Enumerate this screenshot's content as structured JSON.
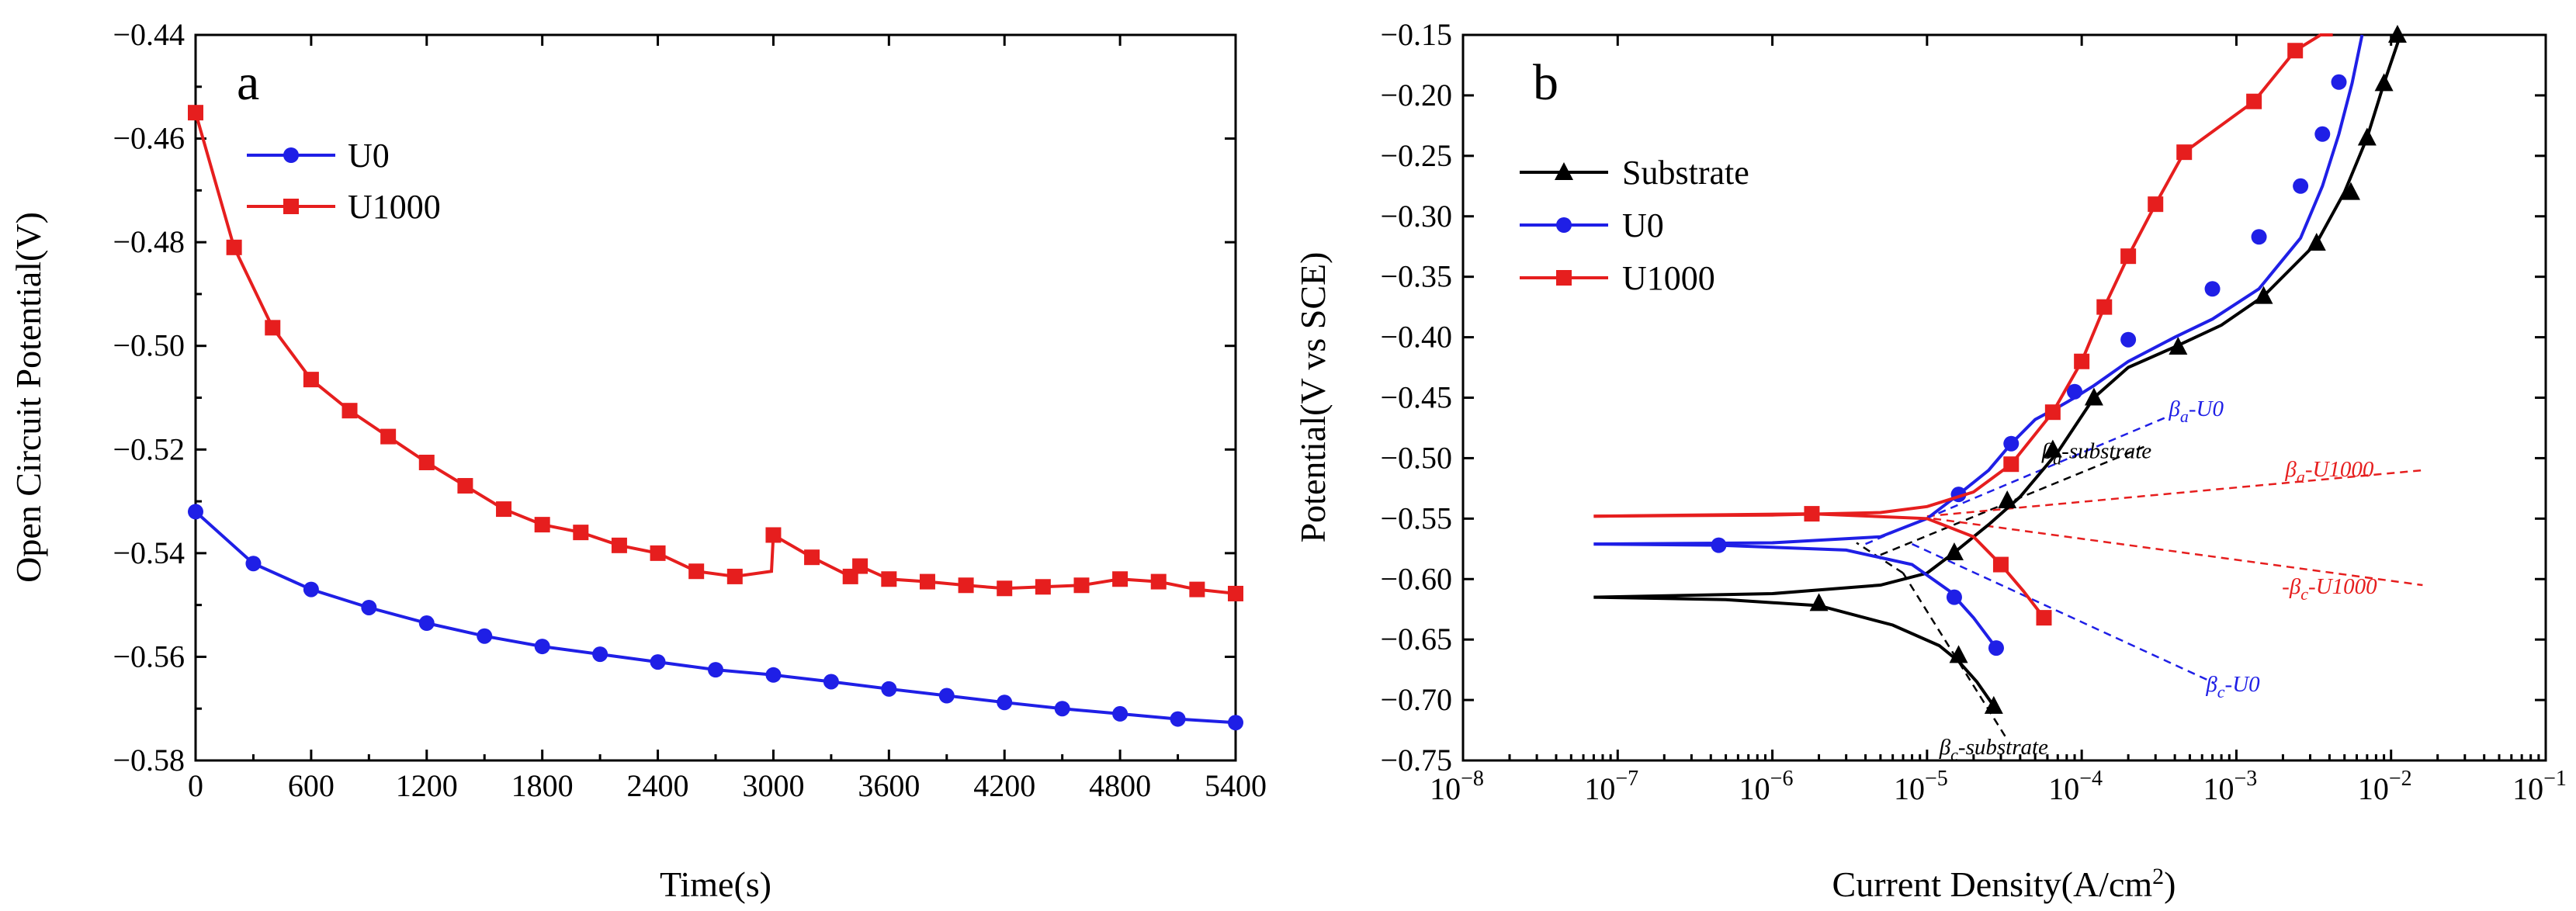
{
  "chart_data": [
    {
      "id": "a",
      "type": "line",
      "panel_label": "a",
      "xlabel": "Time(s)",
      "ylabel": "Open Circuit Potential(V)",
      "xlim": [
        0,
        5400
      ],
      "ylim": [
        -0.58,
        -0.44
      ],
      "xticks": [
        "0",
        "600",
        "1200",
        "1800",
        "2400",
        "3000",
        "3600",
        "4200",
        "4800",
        "5400"
      ],
      "yticks": [
        "-0.44",
        "-0.46",
        "-0.48",
        "-0.50",
        "-0.52",
        "-0.54",
        "-0.56",
        "-0.58"
      ],
      "legend_position": "top-left",
      "series": [
        {
          "name": "U0",
          "color": "#1f1fe6",
          "marker": "circle",
          "x": [
            0,
            300,
            600,
            900,
            1200,
            1500,
            1800,
            2100,
            2400,
            2700,
            3000,
            3300,
            3600,
            3900,
            4200,
            4500,
            4800,
            5100,
            5400
          ],
          "y": [
            -0.532,
            -0.542,
            -0.547,
            -0.5505,
            -0.5535,
            -0.556,
            -0.558,
            -0.5595,
            -0.561,
            -0.5625,
            -0.5635,
            -0.5648,
            -0.5662,
            -0.5675,
            -0.5688,
            -0.57,
            -0.571,
            -0.572,
            -0.5727
          ]
        },
        {
          "name": "U1000",
          "color": "#e61e1e",
          "marker": "square",
          "x": [
            0,
            200,
            400,
            600,
            800,
            1000,
            1200,
            1400,
            1600,
            1800,
            2000,
            2200,
            2400,
            2600,
            2800,
            2990,
            3000,
            3200,
            3400,
            3450,
            3600,
            3800,
            4000,
            4200,
            4400,
            4600,
            4800,
            5000,
            5200,
            5400
          ],
          "y": [
            -0.455,
            -0.481,
            -0.4965,
            -0.5065,
            -0.5125,
            -0.5175,
            -0.5225,
            -0.527,
            -0.5315,
            -0.5345,
            -0.536,
            -0.5385,
            -0.54,
            -0.5435,
            -0.5445,
            -0.5435,
            -0.5365,
            -0.5408,
            -0.5445,
            -0.5425,
            -0.545,
            -0.5455,
            -0.5462,
            -0.5468,
            -0.5465,
            -0.5462,
            -0.545,
            -0.5455,
            -0.547,
            -0.5478
          ]
        }
      ]
    },
    {
      "id": "b",
      "type": "line",
      "panel_label": "b",
      "xlabel": "Current Density(A/cm",
      "xlabel_sup": "2",
      "xlabel_end": ")",
      "ylabel": "Potential(V vs SCE)",
      "xscale": "log",
      "xlim_exp": [
        -8,
        -1
      ],
      "ylim": [
        -0.75,
        -0.15
      ],
      "xtick_base": "10",
      "xtick_exps": [
        "-8",
        "-7",
        "-6",
        "-5",
        "-4",
        "-3",
        "-2",
        "-1"
      ],
      "yticks": [
        "-0.15",
        "-0.20",
        "-0.25",
        "-0.30",
        "-0.35",
        "-0.40",
        "-0.45",
        "-0.50",
        "-0.55",
        "-0.60",
        "-0.65",
        "-0.70",
        "-0.75"
      ],
      "legend_position": "top-left",
      "series": [
        {
          "name": "Substrate",
          "color": "#000000",
          "marker": "triangle",
          "cathodic": {
            "x": [
              7e-08,
              5e-07,
              2e-06,
              6e-06,
              1.2e-05,
              1.6e-05,
              2.1e-05,
              2.7e-05
            ],
            "y": [
              -0.615,
              -0.617,
              -0.622,
              -0.638,
              -0.655,
              -0.668,
              -0.685,
              -0.705
            ]
          },
          "anodic": {
            "x": [
              7e-08,
              1e-06,
              5e-06,
              1e-05,
              1.5e-05,
              2.5e-05,
              4e-05,
              7e-05,
              0.00012,
              0.0002,
              0.0004,
              0.0008,
              0.0015,
              0.0033,
              0.005,
              0.007,
              0.009,
              0.0115
            ],
            "y": [
              -0.615,
              -0.612,
              -0.605,
              -0.595,
              -0.578,
              -0.555,
              -0.532,
              -0.495,
              -0.45,
              -0.425,
              -0.408,
              -0.39,
              -0.366,
              -0.322,
              -0.28,
              -0.235,
              -0.19,
              -0.15
            ]
          },
          "marker_points": {
            "x": [
              2e-06,
              1.6e-05,
              2.7e-05,
              1.5e-05,
              3.3e-05,
              6.5e-05,
              0.00012,
              0.00042,
              0.0015,
              0.0033,
              0.0055,
              0.007,
              0.009,
              0.011
            ],
            "y": [
              -0.62,
              -0.663,
              -0.705,
              -0.578,
              -0.535,
              -0.493,
              -0.45,
              -0.408,
              -0.366,
              -0.322,
              -0.28,
              -0.235,
              -0.19,
              -0.15
            ]
          }
        },
        {
          "name": "U0",
          "color": "#1f1fe6",
          "marker": "circle",
          "cathodic": {
            "x": [
              7e-08,
              4.5e-07,
              3e-06,
              8e-06,
              1.4e-05,
              2e-05,
              2.8e-05
            ],
            "y": [
              -0.571,
              -0.572,
              -0.576,
              -0.588,
              -0.61,
              -0.632,
              -0.657
            ]
          },
          "anodic": {
            "x": [
              7e-08,
              1e-06,
              5e-06,
              1e-05,
              1.6e-05,
              2.5e-05,
              3.5e-05,
              5e-05,
              7e-05,
              9e-05,
              0.00012,
              0.0002,
              0.0004,
              0.0007,
              0.0014,
              0.0026,
              0.0036,
              0.0046,
              0.0056,
              0.0065
            ],
            "y": [
              -0.571,
              -0.57,
              -0.565,
              -0.55,
              -0.53,
              -0.51,
              -0.488,
              -0.468,
              -0.458,
              -0.45,
              -0.44,
              -0.42,
              -0.4,
              -0.385,
              -0.36,
              -0.318,
              -0.275,
              -0.232,
              -0.19,
              -0.15
            ]
          },
          "marker_points": {
            "x": [
              4.5e-07,
              1.5e-05,
              2.8e-05,
              1.6e-05,
              3.5e-05,
              9e-05,
              0.0002,
              0.0007,
              0.0014,
              0.0026,
              0.0036,
              0.0046
            ],
            "y": [
              -0.572,
              -0.615,
              -0.657,
              -0.53,
              -0.488,
              -0.445,
              -0.402,
              -0.36,
              -0.317,
              -0.275,
              -0.232,
              -0.189
            ]
          }
        },
        {
          "name": "U1000",
          "color": "#e61e1e",
          "marker": "square",
          "cathodic": {
            "x": [
              7e-08,
              1.8e-06,
              1e-05,
              2e-05,
              3e-05,
              4.2e-05,
              5.7e-05
            ],
            "y": [
              -0.548,
              -0.546,
              -0.55,
              -0.565,
              -0.588,
              -0.61,
              -0.632
            ]
          },
          "anodic": {
            "x": [
              7e-08,
              1e-06,
              5e-06,
              1e-05,
              2e-05,
              3.5e-05,
              6.5e-05,
              0.0001,
              0.00014,
              0.0002,
              0.0003,
              0.00046,
              0.0013,
              0.0024,
              0.0035,
              0.0042
            ],
            "y": [
              -0.548,
              -0.547,
              -0.545,
              -0.54,
              -0.528,
              -0.505,
              -0.462,
              -0.42,
              -0.375,
              -0.333,
              -0.29,
              -0.247,
              -0.205,
              -0.163,
              -0.15,
              -0.15
            ]
          },
          "marker_points": {
            "x": [
              1.8e-06,
              3e-05,
              5.7e-05,
              3.5e-05,
              6.5e-05,
              0.0001,
              0.00014,
              0.0002,
              0.0003,
              0.00046,
              0.0013,
              0.0024
            ],
            "y": [
              -0.546,
              -0.588,
              -0.632,
              -0.505,
              -0.462,
              -0.42,
              -0.375,
              -0.333,
              -0.29,
              -0.247,
              -0.205,
              -0.163
            ]
          }
        }
      ],
      "tafel_lines": [
        {
          "series": "U0",
          "color": "#1f1fe6",
          "x": [
            4e-06,
            0.00037
          ],
          "y": [
            -0.571,
            -0.465
          ]
        },
        {
          "series": "U0",
          "color": "#1f1fe6",
          "x": [
            8e-06,
            0.00072
          ],
          "y": [
            -0.571,
            -0.686
          ]
        },
        {
          "series": "Substrate",
          "color": "#000000",
          "x": [
            5e-06,
            0.00026
          ],
          "y": [
            -0.58,
            -0.49
          ]
        },
        {
          "series": "Substrate",
          "color": "#000000",
          "x": [
            7e-06,
            3.2e-05
          ],
          "y": [
            -0.595,
            -0.73
          ]
        },
        {
          "series": "Substrate",
          "color": "#000000",
          "x": [
            7e-06,
            3.5e-06
          ],
          "y": [
            -0.595,
            -0.57
          ]
        },
        {
          "series": "U1000",
          "color": "#e61e1e",
          "x": [
            1e-05,
            0.016
          ],
          "y": [
            -0.548,
            -0.51
          ]
        },
        {
          "series": "U1000",
          "color": "#e61e1e",
          "x": [
            1.1e-05,
            0.016
          ],
          "y": [
            -0.55,
            -0.605
          ]
        }
      ],
      "annotations": [
        {
          "sym": "β",
          "sub": "a",
          "rest": "-U0",
          "color": "#1f1fe6",
          "x": 0.00055,
          "y": -0.465
        },
        {
          "sym": "β",
          "sub": "a",
          "rest": "-substrate",
          "color": "#000000",
          "x": 0.000125,
          "y": -0.5
        },
        {
          "sym": "β",
          "sub": "a",
          "rest": "-U1000",
          "color": "#e61e1e",
          "x": 0.004,
          "y": -0.515
        },
        {
          "sym": "-β",
          "sub": "c",
          "rest": "-U1000",
          "color": "#e61e1e",
          "x": 0.004,
          "y": -0.612
        },
        {
          "sym": "β",
          "sub": "c",
          "rest": "-U0",
          "color": "#1f1fe6",
          "x": 0.00095,
          "y": -0.693
        },
        {
          "sym": "β",
          "sub": "c",
          "rest": "-substrate",
          "color": "#000000",
          "x": 2.7e-05,
          "y": -0.745
        }
      ]
    }
  ]
}
